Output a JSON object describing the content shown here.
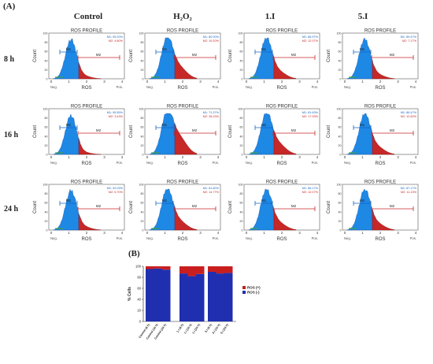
{
  "panel_a_label": "(A)",
  "panel_b_label": "(B)",
  "columns": [
    "Control",
    "H₂O₂",
    "1.I",
    "5.I"
  ],
  "rows": [
    "8 h",
    "16 h",
    "24 h"
  ],
  "histogram_labels": {
    "title": "ROS PROFILE",
    "xlabel": "ROS",
    "ylabel": "Count",
    "neg": "Neg.",
    "pos": "Pos.",
    "m1": "M1",
    "m2": "M2",
    "y_ticks": [
      "0",
      "20",
      "40",
      "60",
      "80",
      "100"
    ],
    "x_ticks": [
      "0",
      "1",
      "2",
      "3",
      "4"
    ]
  },
  "colors": {
    "neg_fill": "#1e88e5",
    "pos_fill": "#c62828",
    "m1": "#1565c0",
    "m2": "#c62828",
    "bar_blue": "#1f2fb0",
    "bar_red": "#c81e1e"
  },
  "chart_data": [
    {
      "type": "table",
      "description_rows": [
        "8 h",
        "16 h",
        "24 h"
      ],
      "cells": [
        {
          "row": "8 h",
          "col": "Control",
          "m1": "M1: 95.20%",
          "m2": "M2: 4.80%",
          "pos_fraction": 0.048
        },
        {
          "row": "8 h",
          "col": "H₂O₂",
          "m1": "M1: 80.00%",
          "m2": "M2: 19.20%",
          "pos_fraction": 0.192
        },
        {
          "row": "8 h",
          "col": "1.I",
          "m1": "M1: 86.97%",
          "m2": "M2: 12.07%",
          "pos_fraction": 0.121
        },
        {
          "row": "8 h",
          "col": "5.I",
          "m1": "M1: 89.47%",
          "m2": "M2: 7.17%",
          "pos_fraction": 0.072
        },
        {
          "row": "16 h",
          "col": "Control",
          "m1": "M1: 95.55%",
          "m2": "M2: 3.43%",
          "pos_fraction": 0.034
        },
        {
          "row": "16 h",
          "col": "H₂O₂",
          "m1": "M1: 71.37%",
          "m2": "M2: 28.23%",
          "pos_fraction": 0.282
        },
        {
          "row": "16 h",
          "col": "1.I",
          "m1": "M1: 81.63%",
          "m2": "M2: 17.33%",
          "pos_fraction": 0.173
        },
        {
          "row": "16 h",
          "col": "5.I",
          "m1": "M1: 86.47%",
          "m2": "M2: 12.60%",
          "pos_fraction": 0.126
        },
        {
          "row": "24 h",
          "col": "Control",
          "m1": "M1: 92.03%",
          "m2": "M2: 5.70%",
          "pos_fraction": 0.057
        },
        {
          "row": "24 h",
          "col": "H₂O₂",
          "m1": "M1: 81.80%",
          "m2": "M2: 14.77%",
          "pos_fraction": 0.148
        },
        {
          "row": "24 h",
          "col": "1.I",
          "m1": "M1: 86.17%",
          "m2": "M2: 12.07%",
          "pos_fraction": 0.121
        },
        {
          "row": "24 h",
          "col": "5.I",
          "m1": "M1: 87.17%",
          "m2": "M2: 11.13%",
          "pos_fraction": 0.111
        }
      ]
    },
    {
      "type": "bar",
      "stacked": true,
      "ylabel": "% Cells",
      "ylim": [
        0,
        100
      ],
      "y_ticks": [
        0,
        20,
        40,
        60,
        80,
        100
      ],
      "legend_position": "right",
      "categories": [
        "Control (8 h)",
        "Control (16 h)",
        "Control (24 h)",
        "1.I (8 h)",
        "1.I (16 h)",
        "1.I (24 h)",
        "5.I (8 h)",
        "5.I (16 h)",
        "5.I (24 h)"
      ],
      "series": [
        {
          "name": "ROS (-)",
          "values": [
            95,
            96,
            94,
            87,
            82,
            86,
            90,
            87,
            88
          ]
        },
        {
          "name": "ROS (+)",
          "values": [
            5,
            4,
            6,
            13,
            18,
            14,
            10,
            13,
            12
          ]
        }
      ]
    }
  ]
}
